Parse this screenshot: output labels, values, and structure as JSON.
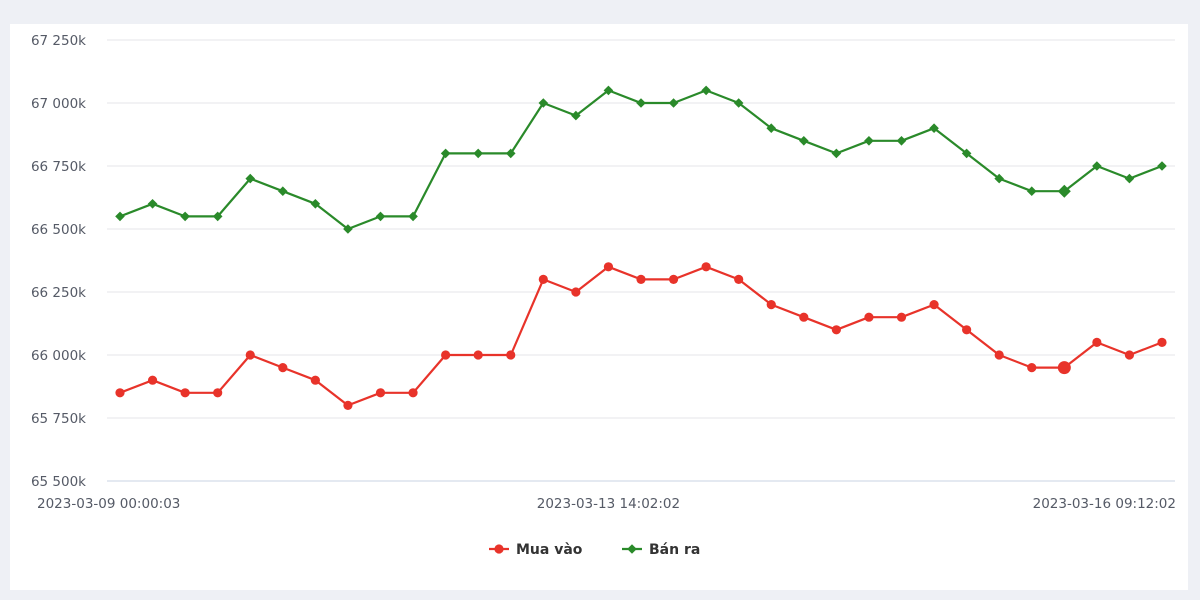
{
  "chart_data": {
    "type": "line",
    "y_ticks": [
      "67 250k",
      "67 000k",
      "66 750k",
      "66 500k",
      "66 250k",
      "66 000k",
      "65 750k",
      "65 500k"
    ],
    "y_tick_values": [
      67250,
      67000,
      66750,
      66500,
      66250,
      66000,
      65750,
      65500
    ],
    "ylim": [
      65500,
      67250
    ],
    "x_tick_labels": [
      {
        "index": 0,
        "label": "2023-03-09 00:00:03"
      },
      {
        "index": 15,
        "label": "2023-03-13 14:02:02"
      },
      {
        "index": 32,
        "label": "2023-03-16 09:12:02"
      }
    ],
    "grid": true,
    "legend_position": "bottom-center",
    "series": [
      {
        "name": "Mua vào",
        "color": "#e8332a",
        "marker": "circle",
        "values": [
          65850,
          65900,
          65850,
          65850,
          66000,
          65950,
          65900,
          65800,
          65850,
          65850,
          66000,
          66000,
          66000,
          66300,
          66250,
          66350,
          66300,
          66300,
          66350,
          66300,
          66200,
          66150,
          66100,
          66150,
          66150,
          66200,
          66100,
          66000,
          65950,
          65950,
          66050,
          66000,
          66050
        ]
      },
      {
        "name": "Bán ra",
        "color": "#2a8a2a",
        "marker": "diamond",
        "values": [
          66550,
          66600,
          66550,
          66550,
          66700,
          66650,
          66600,
          66500,
          66550,
          66550,
          66800,
          66800,
          66800,
          67000,
          66950,
          67050,
          67000,
          67000,
          67050,
          67000,
          66900,
          66850,
          66800,
          66850,
          66850,
          66900,
          66800,
          66700,
          66650,
          66650,
          66750,
          66700,
          66750
        ]
      }
    ],
    "highlight_index": 29
  }
}
